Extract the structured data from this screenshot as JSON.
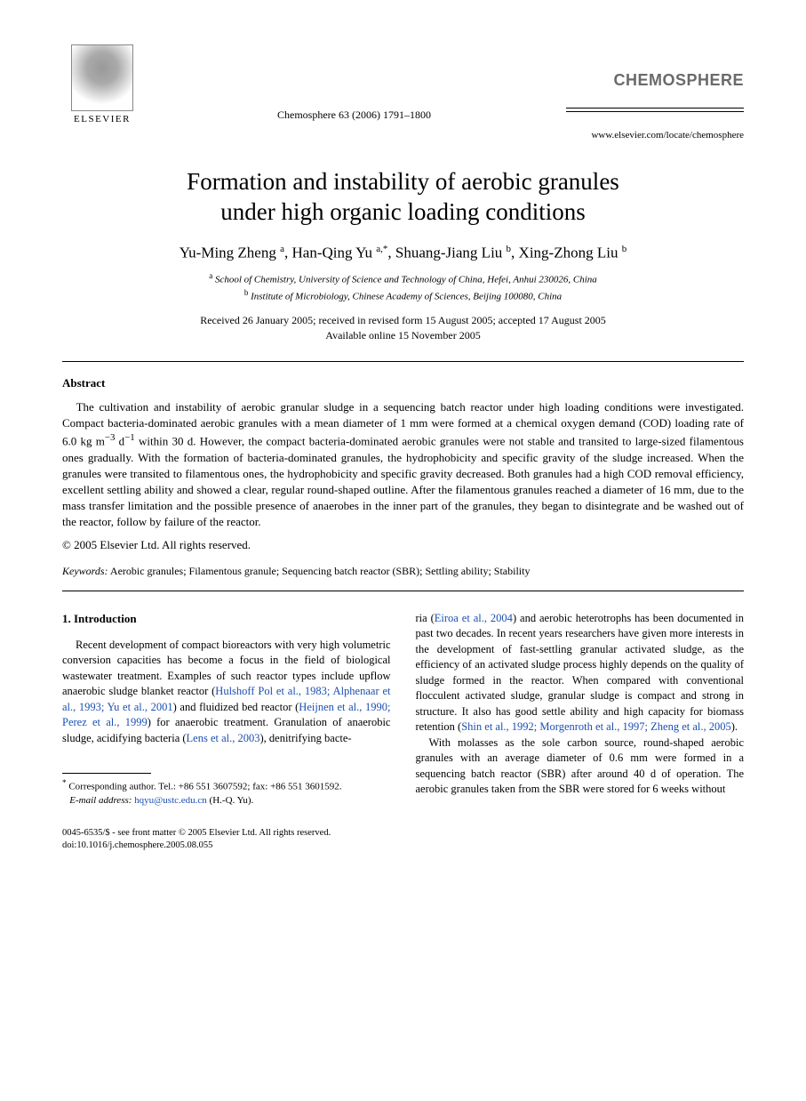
{
  "header": {
    "publisher_label": "ELSEVIER",
    "journal_ref": "Chemosphere 63 (2006) 1791–1800",
    "journal_logo": "CHEMOSPHERE",
    "journal_url": "www.elsevier.com/locate/chemosphere"
  },
  "title_line1": "Formation and instability of aerobic granules",
  "title_line2": "under high organic loading conditions",
  "authors": {
    "a1_name": "Yu-Ming Zheng ",
    "a1_aff": "a",
    "a2_name": "Han-Qing Yu ",
    "a2_aff": "a,*",
    "a3_name": "Shuang-Jiang Liu ",
    "a3_aff": "b",
    "a4_name": "Xing-Zhong Liu ",
    "a4_aff": "b"
  },
  "affiliations": {
    "a": "School of Chemistry, University of Science and Technology of China, Hefei, Anhui 230026, China",
    "b": "Institute of Microbiology, Chinese Academy of Sciences, Beijing 100080, China"
  },
  "dates": {
    "received": "Received 26 January 2005; received in revised form 15 August 2005; accepted 17 August 2005",
    "online": "Available online 15 November 2005"
  },
  "abstract": {
    "heading": "Abstract",
    "body_1": "The cultivation and instability of aerobic granular sludge in a sequencing batch reactor under high loading conditions were investigated. Compact bacteria-dominated aerobic granules with a mean diameter of 1 mm were formed at a chemical oxygen demand (COD) loading rate of 6.0 kg m",
    "body_sup1": "−3",
    "body_mid1": " d",
    "body_sup2": "−1",
    "body_2": " within 30 d. However, the compact bacteria-dominated aerobic granules were not stable and transited to large-sized filamentous ones gradually. With the formation of bacteria-dominated granules, the hydrophobicity and specific gravity of the sludge increased. When the granules were transited to filamentous ones, the hydrophobicity and specific gravity decreased. Both granules had a high COD removal efficiency, excellent settling ability and showed a clear, regular round-shaped outline. After the filamentous granules reached a diameter of 16 mm, due to the mass transfer limitation and the possible presence of anaerobes in the inner part of the granules, they began to disintegrate and be washed out of the reactor, follow by failure of the reactor.",
    "copyright": "© 2005 Elsevier Ltd. All rights reserved."
  },
  "keywords": {
    "label": "Keywords:",
    "text": " Aerobic granules; Filamentous granule; Sequencing batch reactor (SBR); Settling ability; Stability"
  },
  "intro": {
    "heading": "1. Introduction",
    "left_p1a": "Recent development of compact bioreactors with very high volumetric conversion capacities has become a focus in the field of biological wastewater treatment. Examples of such reactor types include upflow anaerobic sludge blanket reactor (",
    "left_cite1": "Hulshoff Pol et al., 1983; Alphenaar et al., 1993; Yu et al., 2001",
    "left_p1b": ") and fluidized bed reactor (",
    "left_cite2": "Heijnen et al., 1990; Perez et al., 1999",
    "left_p1c": ") for anaerobic treatment. Granulation of anaerobic sludge, acidifying bacteria (",
    "left_cite3": "Lens et al., 2003",
    "left_p1d": "), denitrifying bacte-",
    "right_p1a": "ria (",
    "right_cite1": "Eiroa et al., 2004",
    "right_p1b": ") and aerobic heterotrophs has been documented in past two decades. In recent years researchers have given more interests in the development of fast-settling granular activated sludge, as the efficiency of an activated sludge process highly depends on the quality of sludge formed in the reactor. When compared with conventional flocculent activated sludge, granular sludge is compact and strong in structure. It also has good settle ability and high capacity for biomass retention (",
    "right_cite2": "Shin et al., 1992; Morgenroth et al., 1997; Zheng et al., 2005",
    "right_p1c": ").",
    "right_p2": "With molasses as the sole carbon source, round-shaped aerobic granules with an average diameter of 0.6 mm were formed in a sequencing batch reactor (SBR) after around 40 d of operation. The aerobic granules taken from the SBR were stored for 6 weeks without"
  },
  "footnote": {
    "corr": "Corresponding author. Tel.: +86 551 3607592; fax: +86 551 3601592.",
    "email_label": "E-mail address:",
    "email": "hqyu@ustc.edu.cn",
    "email_who": " (H.-Q. Yu)."
  },
  "doi": {
    "line1": "0045-6535/$ - see front matter © 2005 Elsevier Ltd. All rights reserved.",
    "line2": "doi:10.1016/j.chemosphere.2005.08.055"
  }
}
